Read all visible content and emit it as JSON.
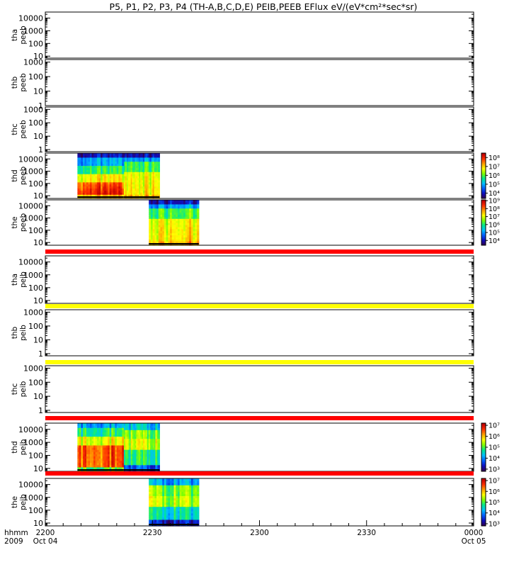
{
  "chart_data": {
    "type": "heatmap",
    "title": "P5, P1, P2, P3, P4 (TH-A,B,C,D,E) PEIB,PEEB EFlux eV/(eV*cm²*sec*sr)",
    "x_axis": {
      "row_labels": [
        "hhmm",
        "2009"
      ],
      "ticks": [
        {
          "t": 0,
          "label": "2200",
          "sublabel": "Oct 04"
        },
        {
          "t": 30,
          "label": "2230",
          "sublabel": ""
        },
        {
          "t": 60,
          "label": "2300",
          "sublabel": ""
        },
        {
          "t": 90,
          "label": "2330",
          "sublabel": ""
        },
        {
          "t": 120,
          "label": "0000",
          "sublabel": "Oct 05"
        }
      ],
      "range_minutes": [
        0,
        120
      ]
    },
    "panels": [
      {
        "probe": "tha",
        "instrument": "peeb",
        "scale": "log",
        "yticks": [
          {
            "v": 10,
            "label": "10"
          },
          {
            "v": 100,
            "label": "100"
          },
          {
            "v": 1000,
            "label": "1000"
          },
          {
            "v": 10000,
            "label": "10000"
          }
        ],
        "ylim": [
          7,
          30000
        ],
        "spectra": [],
        "colorbar": null
      },
      {
        "probe": "thb",
        "instrument": "peeb",
        "scale": "log",
        "yticks": [
          {
            "v": 1,
            "label": "1"
          },
          {
            "v": 10,
            "label": "10"
          },
          {
            "v": 100,
            "label": "100"
          },
          {
            "v": 1000,
            "label": "1000"
          }
        ],
        "ylim": [
          1,
          1500
        ],
        "spectra": [],
        "colorbar": null
      },
      {
        "probe": "thc",
        "instrument": "peeb",
        "scale": "log",
        "yticks": [
          {
            "v": 1,
            "label": "1"
          },
          {
            "v": 10,
            "label": "10"
          },
          {
            "v": 100,
            "label": "100"
          },
          {
            "v": 1000,
            "label": "1000"
          }
        ],
        "ylim": [
          0.7,
          1500
        ],
        "spectra": [],
        "colorbar": null
      },
      {
        "probe": "thd",
        "instrument": "peeb",
        "scale": "log",
        "yticks": [
          {
            "v": 10,
            "label": "10"
          },
          {
            "v": 100,
            "label": "100"
          },
          {
            "v": 1000,
            "label": "1000"
          },
          {
            "v": 10000,
            "label": "10000"
          }
        ],
        "ylim": [
          6,
          30000
        ],
        "spectra": [
          {
            "t0": 9,
            "t1": 22,
            "profile": "eA"
          },
          {
            "t0": 22,
            "t1": 32,
            "profile": "eB"
          }
        ],
        "colorbar": {
          "ticks": [
            {
              "v": 4,
              "label": "10⁴"
            },
            {
              "v": 5,
              "label": "10⁵"
            },
            {
              "v": 6,
              "label": "10⁶"
            },
            {
              "v": 7,
              "label": "10⁷"
            },
            {
              "v": 8,
              "label": "10⁸"
            }
          ],
          "range": [
            3.4,
            8.5
          ]
        }
      },
      {
        "probe": "the",
        "instrument": "peeb",
        "scale": "log",
        "yticks": [
          {
            "v": 10,
            "label": "10"
          },
          {
            "v": 100,
            "label": "100"
          },
          {
            "v": 1000,
            "label": "1000"
          },
          {
            "v": 10000,
            "label": "10000"
          }
        ],
        "ylim": [
          6,
          30000
        ],
        "spectra": [
          {
            "t0": 29,
            "t1": 43,
            "profile": "eB"
          }
        ],
        "colorbar": {
          "ticks": [
            {
              "v": 4,
              "label": "10⁴"
            },
            {
              "v": 5,
              "label": "10⁵"
            },
            {
              "v": 6,
              "label": "10⁶"
            },
            {
              "v": 7,
              "label": "10⁷"
            },
            {
              "v": 8,
              "label": "10⁸"
            },
            {
              "v": 9,
              "label": "10⁹"
            }
          ],
          "range": [
            3.4,
            9.1
          ]
        }
      },
      {
        "probe": "tha",
        "instrument": "peib",
        "scale": "log",
        "yticks": [
          {
            "v": 10,
            "label": "10"
          },
          {
            "v": 100,
            "label": "100"
          },
          {
            "v": 1000,
            "label": "1000"
          },
          {
            "v": 10000,
            "label": "10000"
          }
        ],
        "ylim": [
          6,
          30000
        ],
        "spectra": [],
        "colorbar": null
      },
      {
        "probe": "thb",
        "instrument": "peib",
        "scale": "log",
        "yticks": [
          {
            "v": 1,
            "label": "1"
          },
          {
            "v": 10,
            "label": "10"
          },
          {
            "v": 100,
            "label": "100"
          },
          {
            "v": 1000,
            "label": "1000"
          }
        ],
        "ylim": [
          0.7,
          1500
        ],
        "spectra": [],
        "colorbar": null
      },
      {
        "probe": "thc",
        "instrument": "peib",
        "scale": "log",
        "yticks": [
          {
            "v": 1,
            "label": "1"
          },
          {
            "v": 10,
            "label": "10"
          },
          {
            "v": 100,
            "label": "100"
          },
          {
            "v": 1000,
            "label": "1000"
          }
        ],
        "ylim": [
          0.7,
          1500
        ],
        "spectra": [],
        "colorbar": null
      },
      {
        "probe": "thd",
        "instrument": "peib",
        "scale": "log",
        "yticks": [
          {
            "v": 10,
            "label": "10"
          },
          {
            "v": 100,
            "label": "100"
          },
          {
            "v": 1000,
            "label": "1000"
          },
          {
            "v": 10000,
            "label": "10000"
          }
        ],
        "ylim": [
          6,
          30000
        ],
        "spectra": [
          {
            "t0": 9,
            "t1": 22,
            "profile": "iA"
          },
          {
            "t0": 22,
            "t1": 32,
            "profile": "iB"
          }
        ],
        "colorbar": {
          "ticks": [
            {
              "v": 3,
              "label": "10³"
            },
            {
              "v": 4,
              "label": "10⁴"
            },
            {
              "v": 5,
              "label": "10⁵"
            },
            {
              "v": 6,
              "label": "10⁶"
            },
            {
              "v": 7,
              "label": "10⁷"
            }
          ],
          "range": [
            2.8,
            7.2
          ]
        }
      },
      {
        "probe": "the",
        "instrument": "peib",
        "scale": "log",
        "yticks": [
          {
            "v": 10,
            "label": "10"
          },
          {
            "v": 100,
            "label": "100"
          },
          {
            "v": 1000,
            "label": "1000"
          },
          {
            "v": 10000,
            "label": "10000"
          }
        ],
        "ylim": [
          6,
          30000
        ],
        "spectra": [
          {
            "t0": 29,
            "t1": 43,
            "profile": "iC"
          }
        ],
        "colorbar": {
          "ticks": [
            {
              "v": 3,
              "label": "10³"
            },
            {
              "v": 4,
              "label": "10⁴"
            },
            {
              "v": 5,
              "label": "10⁵"
            },
            {
              "v": 6,
              "label": "10⁶"
            },
            {
              "v": 7,
              "label": "10⁷"
            }
          ],
          "range": [
            2.8,
            7.2
          ]
        }
      }
    ],
    "status_bars": [
      {
        "after_panel": 4,
        "color": "#ff0000"
      },
      {
        "after_panel": 5,
        "color": "#ffff00"
      },
      {
        "after_panel": 6,
        "color": "#ffff00"
      },
      {
        "after_panel": 7,
        "color": "#ff0000"
      },
      {
        "after_panel": 8,
        "color": "#ff0000"
      }
    ],
    "colormap": [
      "#300050",
      "#1010c0",
      "#0060ff",
      "#00c0ff",
      "#00e890",
      "#80ff00",
      "#ffff00",
      "#ffa000",
      "#ff3000",
      "#c00000"
    ]
  }
}
